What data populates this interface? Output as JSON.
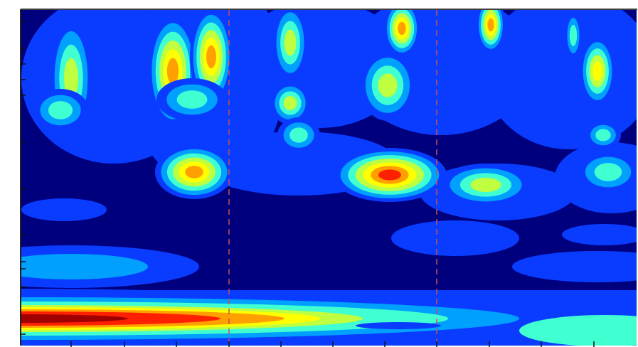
{
  "chart_data": {
    "type": "contour",
    "colors": [
      "#00007f",
      "#0a3cff",
      "#00a0ff",
      "#40ffd0",
      "#c0ff40",
      "#ffff00",
      "#ffa000",
      "#ff2000",
      "#a00000"
    ]
  }
}
